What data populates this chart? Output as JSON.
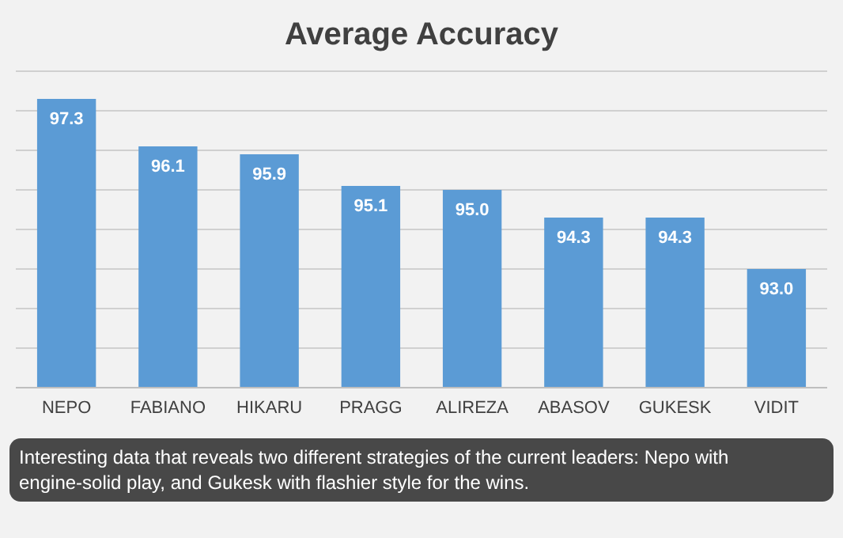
{
  "chart_data": {
    "type": "bar",
    "title": "Average Accuracy",
    "categories": [
      "NEPO",
      "FABIANO",
      "HIKARU",
      "PRAGG",
      "ALIREZA",
      "ABASOV",
      "GUKESK",
      "VIDIT"
    ],
    "values": [
      97.3,
      96.1,
      95.9,
      95.1,
      95.0,
      94.3,
      94.3,
      93.0
    ],
    "color": "#5b9bd5",
    "ylim": [
      90,
      98
    ],
    "yticks": [
      {
        "value": 90,
        "label": null
      },
      {
        "value": 91,
        "label": null
      },
      {
        "value": 92,
        "label": null
      },
      {
        "value": 93,
        "label": null
      },
      {
        "value": 94,
        "label": null
      },
      {
        "value": 95,
        "label": null
      },
      {
        "value": 96,
        "label": null
      },
      {
        "value": 97,
        "label": null
      },
      {
        "value": 98,
        "label": null
      }
    ],
    "tick_labels": "x",
    "grid": "y",
    "value_labels": [
      "97.3",
      "96.1",
      "95.9",
      "95.1",
      "95.0",
      "94.3",
      "94.3",
      "93.0"
    ],
    "annotations": [
      "Interesting data that reveals two different strategies of the current leaders: Nepo with engine-solid play, and Gukesk with flashier style for the wins."
    ]
  }
}
